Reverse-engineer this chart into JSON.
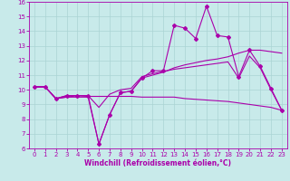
{
  "xlabel": "Windchill (Refroidissement éolien,°C)",
  "xlim": [
    -0.5,
    23.5
  ],
  "ylim": [
    6,
    16
  ],
  "xticks": [
    0,
    1,
    2,
    3,
    4,
    5,
    6,
    7,
    8,
    9,
    10,
    11,
    12,
    13,
    14,
    15,
    16,
    17,
    18,
    19,
    20,
    21,
    22,
    23
  ],
  "yticks": [
    6,
    7,
    8,
    9,
    10,
    11,
    12,
    13,
    14,
    15,
    16
  ],
  "bg_color": "#c8eaea",
  "line_color": "#aa00aa",
  "grid_color": "#aad4d4",
  "lines": [
    {
      "x": [
        0,
        1,
        2,
        3,
        4,
        5,
        6,
        7,
        8,
        9,
        10,
        11,
        12,
        13,
        14,
        15,
        16,
        17,
        18,
        19,
        20,
        21,
        22,
        23
      ],
      "y": [
        10.2,
        10.2,
        9.4,
        9.6,
        9.6,
        9.6,
        6.3,
        8.3,
        9.8,
        9.9,
        10.8,
        11.3,
        11.3,
        14.4,
        14.2,
        13.5,
        15.7,
        13.7,
        13.6,
        10.9,
        12.7,
        11.6,
        10.1,
        8.6
      ],
      "marker": "D",
      "markersize": 2.0
    },
    {
      "x": [
        0,
        1,
        2,
        3,
        4,
        5,
        6,
        7,
        8,
        9,
        10,
        11,
        12,
        13,
        14,
        15,
        16,
        17,
        18,
        19,
        20,
        21,
        22,
        23
      ],
      "y": [
        10.2,
        10.2,
        9.4,
        9.5,
        9.5,
        9.5,
        6.3,
        8.3,
        9.8,
        9.9,
        10.8,
        11.0,
        11.2,
        11.5,
        11.7,
        11.85,
        12.0,
        12.1,
        12.25,
        12.5,
        12.7,
        12.7,
        12.6,
        12.5
      ],
      "marker": null,
      "markersize": 0
    },
    {
      "x": [
        0,
        1,
        2,
        3,
        4,
        5,
        6,
        7,
        8,
        9,
        10,
        11,
        12,
        13,
        14,
        15,
        16,
        17,
        18,
        19,
        20,
        21,
        22,
        23
      ],
      "y": [
        10.2,
        10.2,
        9.4,
        9.5,
        9.6,
        9.55,
        9.55,
        9.55,
        9.55,
        9.55,
        9.5,
        9.5,
        9.5,
        9.5,
        9.4,
        9.35,
        9.3,
        9.25,
        9.2,
        9.1,
        9.0,
        8.9,
        8.8,
        8.6
      ],
      "marker": null,
      "markersize": 0
    },
    {
      "x": [
        0,
        1,
        2,
        3,
        4,
        5,
        6,
        7,
        8,
        9,
        10,
        11,
        12,
        13,
        14,
        15,
        16,
        17,
        18,
        19,
        20,
        21,
        22,
        23
      ],
      "y": [
        10.2,
        10.2,
        9.4,
        9.6,
        9.6,
        9.6,
        8.8,
        9.7,
        10.0,
        10.1,
        10.9,
        11.1,
        11.25,
        11.4,
        11.5,
        11.6,
        11.7,
        11.8,
        11.9,
        10.8,
        12.3,
        11.5,
        10.0,
        8.6
      ],
      "marker": null,
      "markersize": 0
    }
  ]
}
